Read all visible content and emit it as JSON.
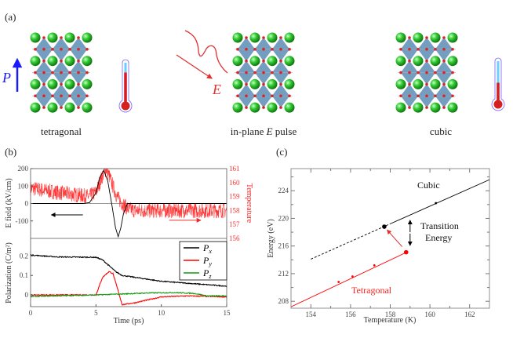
{
  "panel_a": {
    "label": "(a)",
    "states": [
      {
        "caption": "tetragonal",
        "thermometer_level": 0.75
      },
      {
        "caption_prefix": "in-plane ",
        "caption_italic": "E",
        "caption_suffix": " pulse"
      },
      {
        "caption": "cubic",
        "thermometer_level": 0.45
      }
    ],
    "polarization_symbol": "P",
    "field_symbol": "E",
    "colors": {
      "a_site": "#22bb22",
      "oxygen": "#dd2222",
      "octahedron": "#5b8db5",
      "polarization": "#1a1aff",
      "field": "#dd2222"
    }
  },
  "chart_data": [
    {
      "panel": "(b) top",
      "type": "line",
      "xlabel": "",
      "ylabel": "E field (kV/cm)",
      "ylabel_right": "Temperature",
      "xlim": [
        0,
        15
      ],
      "ylim": [
        -200,
        200
      ],
      "ylim_right": [
        156,
        161
      ],
      "yticks": [
        200,
        100,
        0,
        -100
      ],
      "yticks_right": [
        161,
        160,
        159,
        158,
        157,
        156
      ],
      "series": [
        {
          "axis": "left",
          "color": "#000000",
          "x": [
            0,
            4,
            4.5,
            5,
            5.3,
            5.6,
            5.9,
            6.2,
            6.5,
            6.7,
            6.9,
            7.1,
            7.4,
            8,
            15
          ],
          "y": [
            0,
            0,
            5,
            60,
            150,
            190,
            130,
            0,
            -140,
            -190,
            -140,
            -60,
            0,
            0,
            0
          ]
        },
        {
          "axis": "right",
          "color": "#ff0000",
          "x": [
            0,
            2,
            4.5,
            5,
            5.5,
            5.8,
            6.2,
            6.6,
            7,
            7.5,
            8,
            10,
            15
          ],
          "y": [
            159.6,
            159.3,
            159,
            159.3,
            160.5,
            161,
            160,
            159,
            158.5,
            158.1,
            158,
            158,
            158
          ]
        }
      ]
    },
    {
      "panel": "(b) bottom",
      "type": "line",
      "xlabel": "Time (ps)",
      "ylabel": "Polarization (C/m²)",
      "xlim": [
        0,
        15
      ],
      "ylim": [
        -0.06,
        0.29
      ],
      "xticks": [
        0,
        5,
        10,
        15
      ],
      "yticks": [
        0.2,
        0.1,
        0
      ],
      "legend": "top-right",
      "series": [
        {
          "name": "Px",
          "color": "#000000",
          "x": [
            0,
            2,
            5,
            5.5,
            6,
            6.5,
            7,
            8,
            10,
            12,
            13,
            15
          ],
          "y": [
            0.205,
            0.195,
            0.193,
            0.18,
            0.15,
            0.12,
            0.1,
            0.09,
            0.07,
            0.06,
            0.055,
            0.045
          ]
        },
        {
          "name": "Py",
          "color": "#ff0000",
          "x": [
            0,
            5,
            5.5,
            6,
            6.3,
            6.7,
            7,
            7.5,
            8,
            9,
            10,
            12,
            15
          ],
          "y": [
            0,
            0,
            0.09,
            0.12,
            0.11,
            0.02,
            -0.05,
            -0.045,
            -0.04,
            -0.025,
            -0.01,
            -0.005,
            -0.01
          ]
        },
        {
          "name": "Pz",
          "color": "#119911",
          "x": [
            0,
            5,
            7,
            9,
            11,
            12.5,
            13.5,
            15
          ],
          "y": [
            -0.008,
            0,
            0.005,
            0.01,
            0.012,
            0.008,
            -0.005,
            -0.005
          ]
        }
      ]
    },
    {
      "panel": "(c)",
      "type": "line",
      "xlabel": "Temperature (K)",
      "ylabel": "Energy (eV)",
      "xlim": [
        153,
        163
      ],
      "ylim": [
        207,
        227.2
      ],
      "xticks": [
        154,
        156,
        158,
        160,
        162
      ],
      "yticks": [
        208,
        212,
        216,
        220,
        224
      ],
      "series": [
        {
          "name": "Cubic",
          "color": "#000000",
          "dashed_until": 158,
          "x": [
            154,
            163
          ],
          "y": [
            214.1,
            225.6
          ],
          "points": [
            [
              160.3,
              222.2
            ]
          ],
          "highlight": [
            157.7,
            218.8
          ]
        },
        {
          "name": "Tetragonal",
          "color": "#ff0000",
          "x": [
            153,
            158.9
          ],
          "y": [
            207.2,
            215.2
          ],
          "points": [
            [
              155.4,
              210.8
            ],
            [
              156.1,
              211.6
            ],
            [
              157.2,
              213.2
            ]
          ],
          "highlight": [
            158.8,
            215.1
          ]
        }
      ],
      "annotations": {
        "cubic": "Cubic",
        "tetragonal": "Tetragonal",
        "transition_1": "Transition",
        "transition_2": "Energy"
      }
    }
  ],
  "labels": {
    "b": "(b)",
    "c": "(c)"
  },
  "legend": [
    {
      "sym": "P",
      "sub": "x"
    },
    {
      "sym": "P",
      "sub": "y"
    },
    {
      "sym": "P",
      "sub": "z"
    }
  ]
}
